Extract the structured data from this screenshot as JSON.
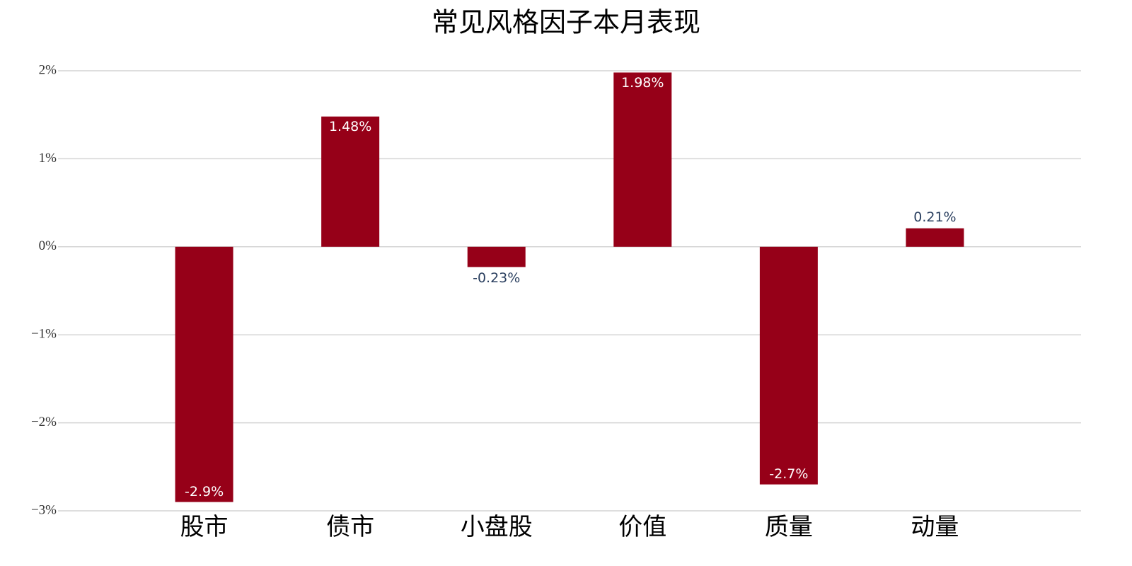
{
  "chart_data": {
    "type": "bar",
    "title": "常见风格因子本月表现",
    "categories": [
      "股市",
      "债市",
      "小盘股",
      "价值",
      "质量",
      "动量"
    ],
    "values": [
      -2.9,
      1.48,
      -0.23,
      1.98,
      -2.7,
      0.21
    ],
    "value_labels": [
      "-2.9%",
      "1.48%",
      "-0.23%",
      "1.98%",
      "-2.7%",
      "0.21%"
    ],
    "color": "#960018",
    "ylim": [
      -3,
      2
    ],
    "yticks": [
      {
        "value": -3,
        "label": "−3%"
      },
      {
        "value": -2,
        "label": "−2%"
      },
      {
        "value": -1,
        "label": "−1%"
      },
      {
        "value": 0,
        "label": "0%"
      },
      {
        "value": 1,
        "label": "1%"
      },
      {
        "value": 2,
        "label": "2%"
      }
    ],
    "grid": true
  }
}
